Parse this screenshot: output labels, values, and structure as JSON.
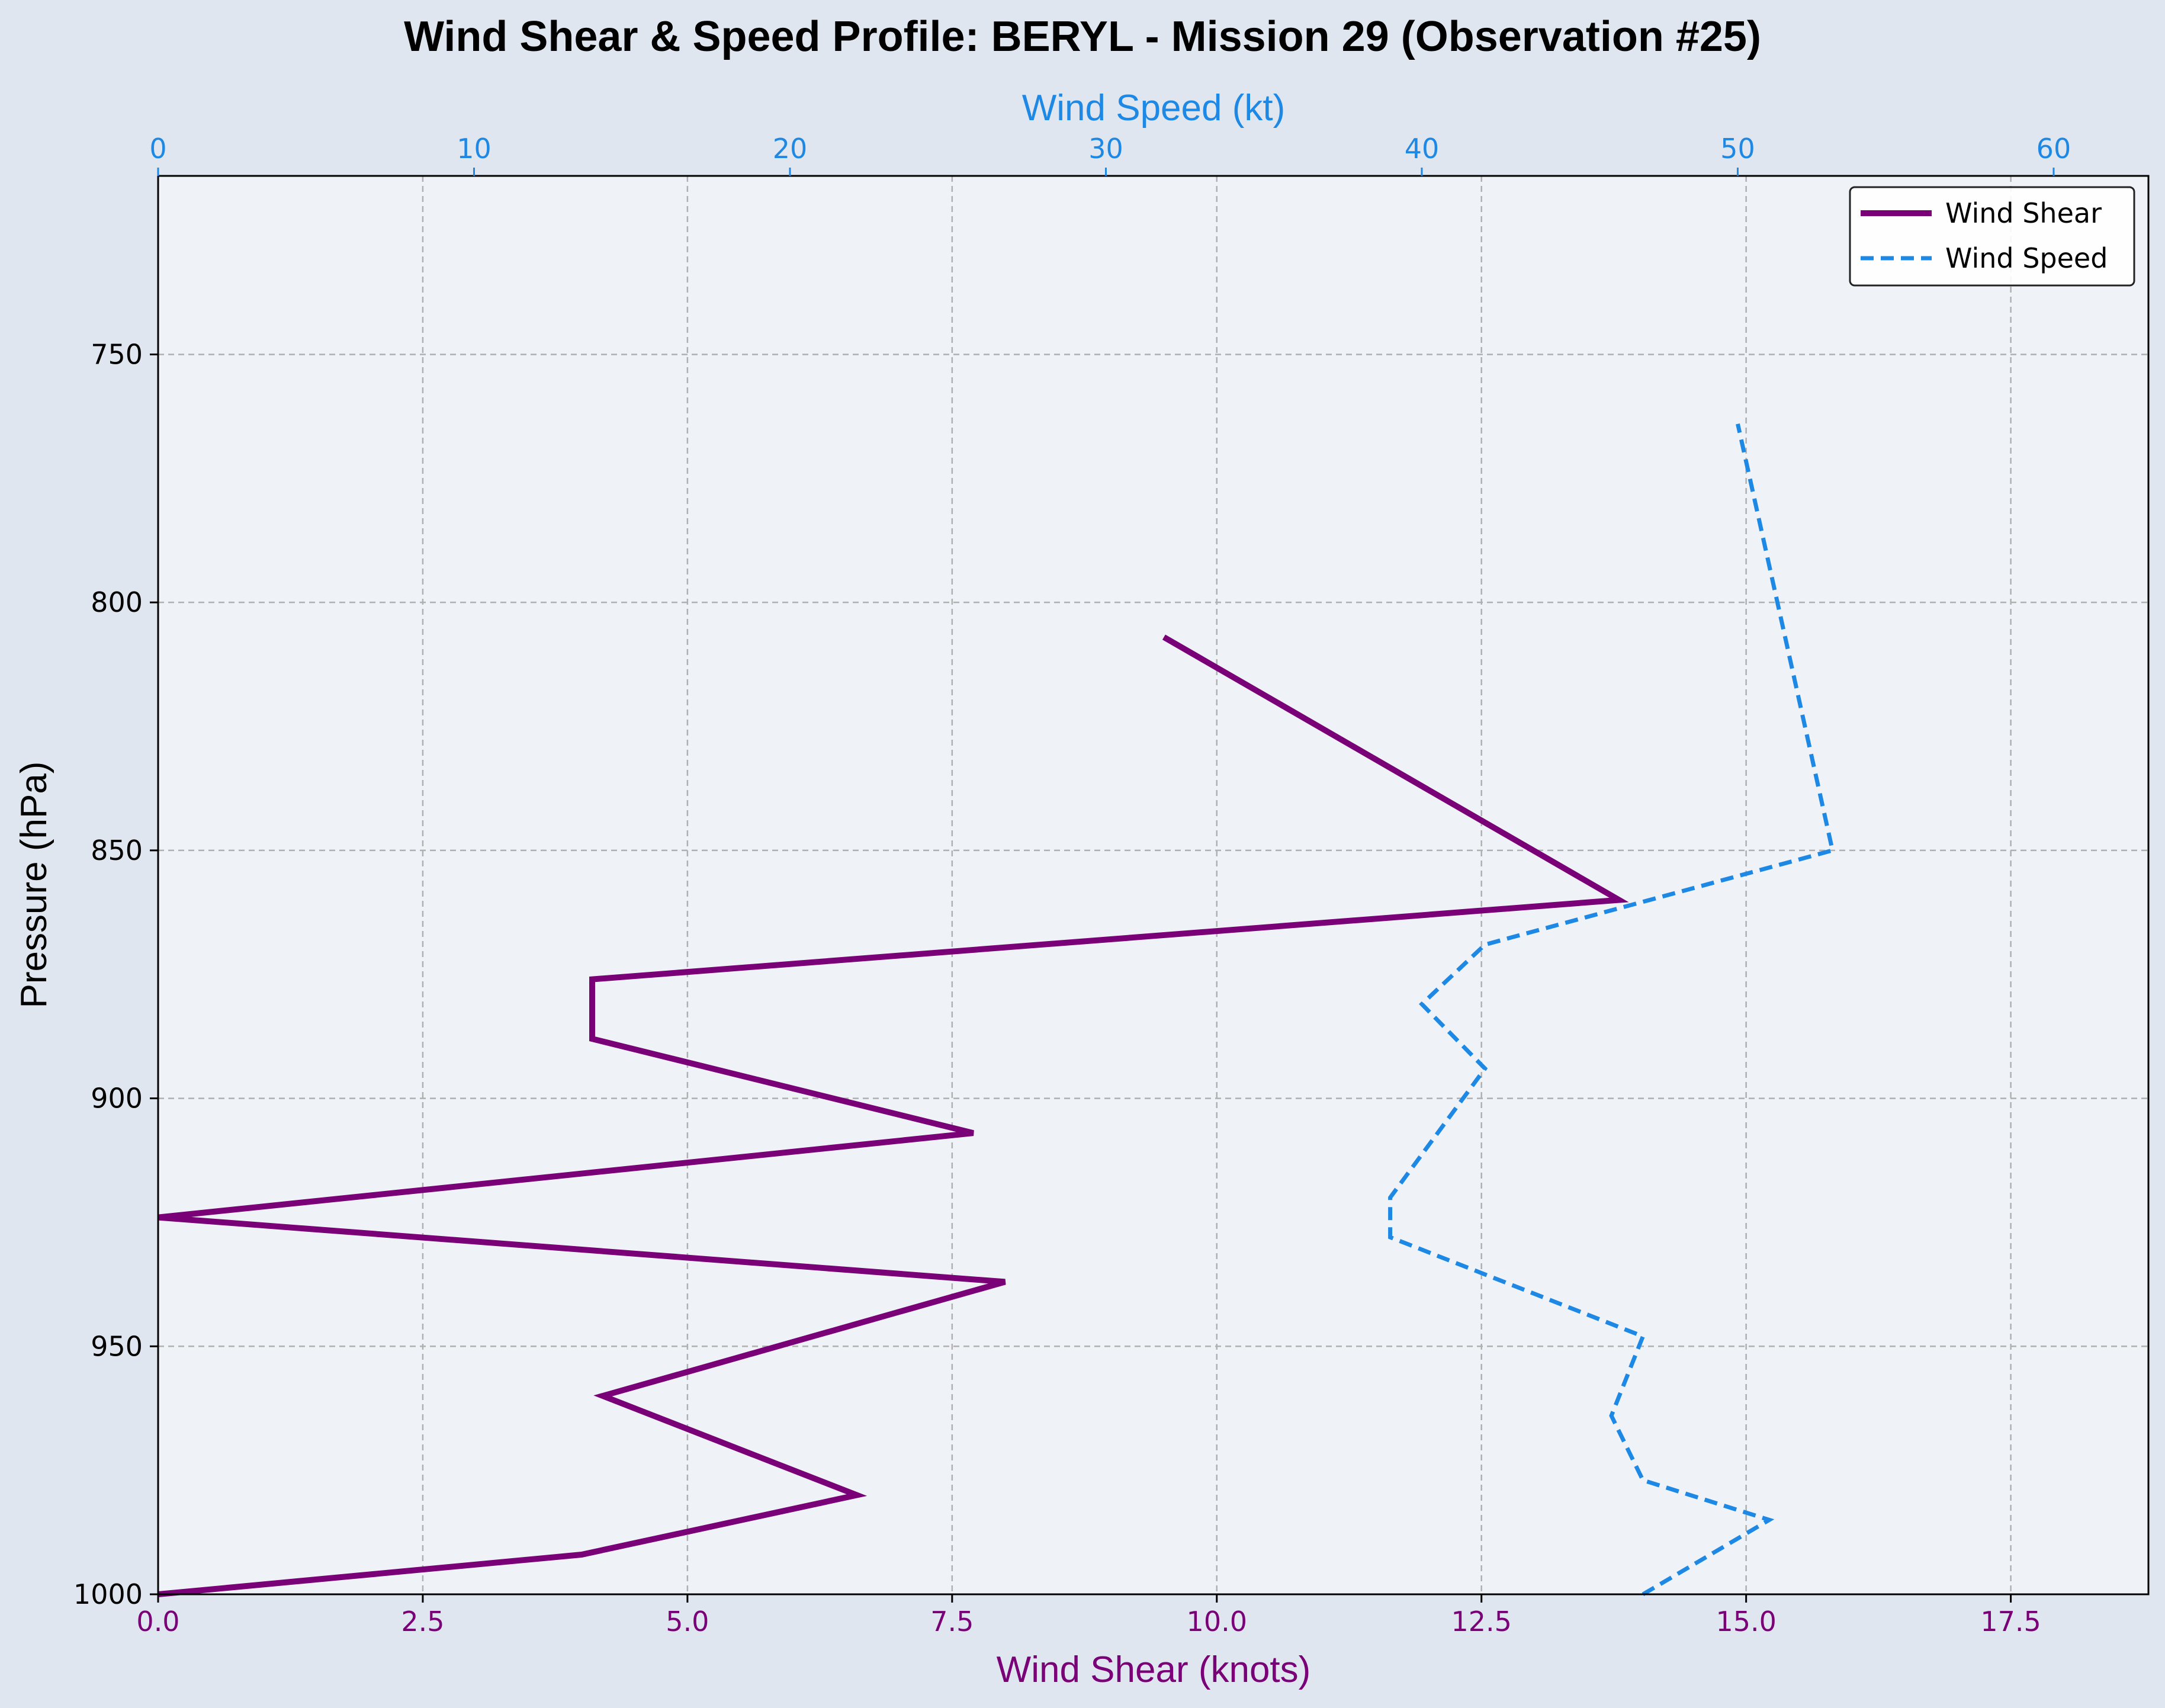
{
  "chart_data": {
    "type": "line",
    "title": "Wind Shear & Speed Profile: BERYL - Mission 29 (Observation #25)",
    "ylabel": "Pressure (hPa)",
    "xlabel_bottom": "Wind Shear (knots)",
    "xlabel_top": "Wind Speed (kt)",
    "y_inverted": true,
    "ylim": [
      1000,
      714
    ],
    "yticks": [
      750,
      800,
      850,
      900,
      950,
      1000
    ],
    "xlim_bottom": [
      0,
      18.8
    ],
    "xticks_bottom": [
      "0.0",
      "2.5",
      "5.0",
      "7.5",
      "10.0",
      "12.5",
      "15.0",
      "17.5"
    ],
    "xlim_top": [
      0,
      63
    ],
    "xticks_top": [
      "0",
      "10",
      "20",
      "30",
      "40",
      "50",
      "60"
    ],
    "grid": true,
    "legend_position": "upper-right",
    "colors": {
      "shear": "#7a0077",
      "speed": "#1e88e5",
      "plot_background": "#eff3f8",
      "figure_background": "#e0e6f0",
      "grid": "#b0b0b0"
    },
    "series": [
      {
        "name": "Wind Shear",
        "axis": "bottom",
        "style": "solid",
        "points": [
          {
            "x": 0.0,
            "y": 1000
          },
          {
            "x": 4.0,
            "y": 992
          },
          {
            "x": 6.6,
            "y": 980
          },
          {
            "x": 4.2,
            "y": 960
          },
          {
            "x": 8.0,
            "y": 937
          },
          {
            "x": 0.0,
            "y": 924
          },
          {
            "x": 7.7,
            "y": 907
          },
          {
            "x": 4.1,
            "y": 888
          },
          {
            "x": 4.1,
            "y": 876
          },
          {
            "x": 13.8,
            "y": 860
          },
          {
            "x": 9.5,
            "y": 807
          }
        ]
      },
      {
        "name": "Wind Speed",
        "axis": "top",
        "style": "dashed",
        "points": [
          {
            "x": 47.0,
            "y": 1000
          },
          {
            "x": 51.0,
            "y": 985
          },
          {
            "x": 47.0,
            "y": 977
          },
          {
            "x": 46.0,
            "y": 964
          },
          {
            "x": 47.0,
            "y": 948
          },
          {
            "x": 39.0,
            "y": 928
          },
          {
            "x": 39.0,
            "y": 920
          },
          {
            "x": 42.0,
            "y": 894
          },
          {
            "x": 40.0,
            "y": 881
          },
          {
            "x": 42.0,
            "y": 869
          },
          {
            "x": 53.0,
            "y": 850
          },
          {
            "x": 50.0,
            "y": 764
          }
        ]
      }
    ]
  }
}
